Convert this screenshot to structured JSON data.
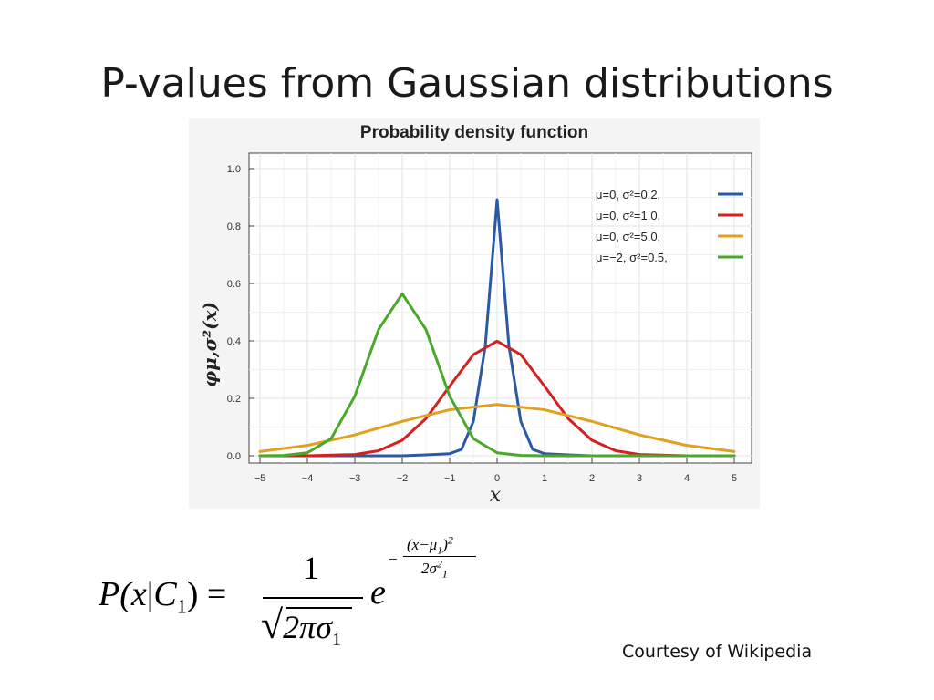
{
  "slide": {
    "title": "P-values from Gaussian distributions",
    "credit": "Courtesy of Wikipedia"
  },
  "formula": {
    "lhs_p": "P(",
    "lhs_x": "x",
    "lhs_sep": "|",
    "lhs_c": "C",
    "lhs_sub": "1",
    "lhs_close": ")",
    "eq": "=",
    "numerator": "1",
    "den_sqrt": "√",
    "den_body": "2πσ",
    "den_sub": "1",
    "base": "e",
    "exp_minus": "−",
    "exp_num": "(x−μ",
    "exp_num_sub": "1",
    "exp_num_close": ")",
    "exp_num_sup": "2",
    "exp_den": "2σ",
    "exp_den_sup": "2",
    "exp_den_sub": "1"
  },
  "chart_data": {
    "type": "line",
    "title": "Probability density function",
    "xlabel": "x",
    "ylabel": "φμ,σ²(x)",
    "xlim": [
      -5,
      5
    ],
    "ylim": [
      0,
      1.0
    ],
    "x_ticks": [
      "−5",
      "−4",
      "−3",
      "−2",
      "−1",
      "0",
      "1",
      "2",
      "3",
      "4",
      "5"
    ],
    "y_ticks": [
      "0.0",
      "0.2",
      "0.4",
      "0.6",
      "0.8",
      "1.0"
    ],
    "grid": true,
    "legend_position": "top-right",
    "series": [
      {
        "name": "μ=0,   σ²=0.2,",
        "mu": 0,
        "var": 0.2,
        "color": "#2a5aa6",
        "x": [
          -5,
          -4,
          -3,
          -2,
          -1.5,
          -1,
          -0.75,
          -0.5,
          -0.25,
          0,
          0.25,
          0.5,
          0.75,
          1,
          1.5,
          2,
          3,
          4,
          5
        ],
        "y": [
          0,
          0,
          0,
          0,
          0.0033,
          0.0073,
          0.0223,
          0.1196,
          0.3815,
          0.8921,
          0.3815,
          0.1196,
          0.0223,
          0.0073,
          0.0033,
          0,
          0,
          0,
          0
        ]
      },
      {
        "name": "μ=0,   σ²=1.0,",
        "mu": 0,
        "var": 1.0,
        "color": "#d42020",
        "x": [
          -5,
          -4,
          -3,
          -2.5,
          -2,
          -1.5,
          -1,
          -0.5,
          0,
          0.5,
          1,
          1.5,
          2,
          2.5,
          3,
          4,
          5
        ],
        "y": [
          0,
          0.0001,
          0.0044,
          0.0175,
          0.054,
          0.1295,
          0.242,
          0.3521,
          0.3989,
          0.3521,
          0.242,
          0.1295,
          0.054,
          0.0175,
          0.0044,
          0.0001,
          0
        ]
      },
      {
        "name": "μ=0,   σ²=5.0,",
        "mu": 0,
        "var": 5.0,
        "color": "#e0a020",
        "x": [
          -5,
          -4,
          -3,
          -2,
          -1,
          0,
          1,
          2,
          3,
          4,
          5
        ],
        "y": [
          0.0146,
          0.0361,
          0.0727,
          0.1196,
          0.1601,
          0.1784,
          0.1601,
          0.1196,
          0.0727,
          0.0361,
          0.0146
        ]
      },
      {
        "name": "μ=−2, σ²=0.5,",
        "mu": -2,
        "var": 0.5,
        "color": "#4aa82a",
        "x": [
          -5,
          -4.5,
          -4,
          -3.5,
          -3,
          -2.5,
          -2,
          -1.5,
          -1,
          -0.5,
          0,
          0.5,
          1,
          2,
          3,
          4,
          5
        ],
        "y": [
          0,
          0.0011,
          0.0103,
          0.0595,
          0.2076,
          0.4394,
          0.5642,
          0.4394,
          0.2076,
          0.0595,
          0.0103,
          0.0011,
          0.0001,
          0,
          0,
          0,
          0
        ]
      }
    ]
  }
}
